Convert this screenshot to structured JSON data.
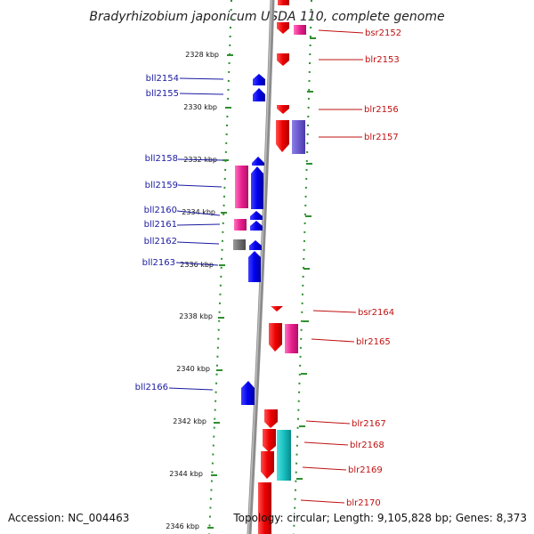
{
  "title": "Bradyrhizobium japonicum USDA 110, complete genome",
  "footer": {
    "accession": "Accession: NC_004463",
    "topology": "Topology: circular; Length: 9,105,828 bp; Genes: 8,373"
  },
  "kbp_labels": [
    "2328 kbp",
    "2330 kbp",
    "2332 kbp",
    "2334 kbp",
    "2336 kbp",
    "2338 kbp",
    "2340 kbp",
    "2342 kbp",
    "2344 kbp",
    "2346 kbp"
  ],
  "left_genes": [
    "bll2154",
    "bll2155",
    "bll2158",
    "bll2159",
    "bll2160",
    "bll2161",
    "bll2162",
    "bll2163",
    "bll2166"
  ],
  "right_genes": [
    "bsr2152",
    "blr2153",
    "blr2156",
    "blr2157",
    "bsr2164",
    "blr2165",
    "blr2167",
    "blr2168",
    "blr2169",
    "blr2170"
  ],
  "colors": {
    "backbone": "#8c8c8c",
    "ruler": "#2f8f2f",
    "forward_gene": "#e01010",
    "reverse_gene": "#1010e0",
    "magenta_feature": "#e0208a",
    "purple_feature": "#6a5acd",
    "cyan_feature": "#18b8b8",
    "gray_feature": "#707070",
    "label_left": "#1a1aa0",
    "label_right": "#c01010"
  }
}
